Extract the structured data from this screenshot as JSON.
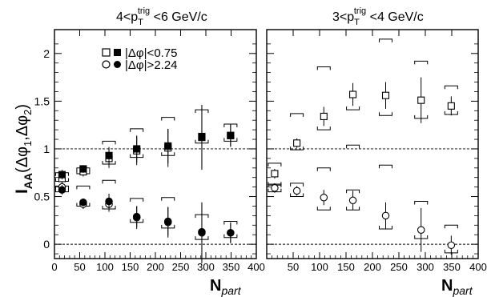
{
  "chart_data": [
    {
      "type": "scatter",
      "panel": "left",
      "title_main": "4<p",
      "title_sub": "T",
      "title_sup": "trig",
      "title_rest": " <6 GeV/c",
      "xlim": [
        0,
        400
      ],
      "ylim": [
        -0.15,
        2.25
      ],
      "xticks": [
        0,
        50,
        100,
        150,
        200,
        250,
        300,
        350,
        400
      ],
      "yticks": [
        0,
        0.5,
        1,
        1.5,
        2
      ],
      "reference_lines": [
        0,
        1
      ],
      "legend": [
        {
          "label_pre": "|",
          "label_mid": "Δφ",
          "label_post": "|<0.75",
          "symbols": [
            "open-square",
            "filled-square"
          ]
        },
        {
          "label_pre": "|",
          "label_mid": "Δφ",
          "label_post": "|>2.24",
          "symbols": [
            "open-circle",
            "filled-circle"
          ]
        }
      ],
      "series": [
        {
          "symbol": "open-square",
          "x": [
            15,
            57,
            108,
            163,
            225,
            292,
            349
          ],
          "y": [
            0.69,
            0.76,
            0.9,
            0.98,
            1.01,
            1.12,
            1.14
          ],
          "err": [
            0.07,
            0.05,
            0.1,
            0.15,
            0.2,
            0.34,
            0.12
          ],
          "sys_hi": [
            0.75,
            0.8,
            1.08,
            1.21,
            1.33,
            1.41,
            1.26
          ],
          "sys_lo": [
            0.66,
            0.74,
            0.84,
            0.91,
            0.93,
            1.06,
            1.08
          ]
        },
        {
          "symbol": "filled-square",
          "x": [
            15,
            57,
            108,
            163,
            225,
            292,
            349
          ],
          "y": [
            0.73,
            0.79,
            0.93,
            1.0,
            1.03,
            1.13,
            1.14
          ],
          "err": [
            0.05,
            0.04,
            0.09,
            0.14,
            0.18,
            0.33,
            0.11
          ]
        },
        {
          "symbol": "open-circle",
          "x": [
            15,
            57,
            108,
            163,
            225,
            292,
            349
          ],
          "y": [
            0.6,
            0.42,
            0.42,
            0.28,
            0.23,
            0.12,
            0.12
          ],
          "err": [
            0.06,
            0.05,
            0.08,
            0.12,
            0.16,
            0.32,
            0.11
          ],
          "sys_hi": [
            0.61,
            0.61,
            0.67,
            0.48,
            0.49,
            0.31,
            0.24
          ],
          "sys_lo": [
            0.55,
            0.4,
            0.37,
            0.23,
            0.17,
            0.05,
            0.07
          ]
        },
        {
          "symbol": "filled-circle",
          "x": [
            15,
            57,
            108,
            163,
            225,
            292,
            349
          ],
          "y": [
            0.57,
            0.44,
            0.45,
            0.29,
            0.24,
            0.13,
            0.12
          ],
          "err": [
            0.05,
            0.04,
            0.08,
            0.11,
            0.15,
            0.3,
            0.1
          ]
        }
      ]
    },
    {
      "type": "scatter",
      "panel": "right",
      "title_main": "3<p",
      "title_sub": "T",
      "title_sup": "trig",
      "title_rest": " <4 GeV/c",
      "xlim": [
        0,
        400
      ],
      "ylim": [
        -0.15,
        2.25
      ],
      "xticks": [
        50,
        100,
        150,
        200,
        250,
        300,
        350,
        400
      ],
      "yticks": [
        0,
        0.5,
        1,
        1.5,
        2
      ],
      "reference_lines": [
        0,
        1
      ],
      "series": [
        {
          "symbol": "open-square",
          "x": [
            15,
            57,
            108,
            163,
            225,
            292,
            349
          ],
          "y": [
            0.74,
            1.06,
            1.34,
            1.57,
            1.56,
            1.51,
            1.45
          ],
          "err": [
            0.05,
            0.05,
            0.1,
            0.12,
            0.14,
            0.24,
            0.1
          ],
          "sys_hi": [
            0.85,
            1.37,
            1.86,
            1.04,
            2.15,
            1.92,
            1.66
          ],
          "sys_lo": [
            0.62,
            0.99,
            1.2,
            1.41,
            1.35,
            1.32,
            1.36
          ]
        },
        {
          "symbol": "open-circle",
          "x": [
            15,
            57,
            108,
            163,
            225,
            292,
            349
          ],
          "y": [
            0.59,
            0.56,
            0.49,
            0.46,
            0.3,
            0.15,
            -0.01
          ],
          "err": [
            0.05,
            0.05,
            0.08,
            0.1,
            0.14,
            0.23,
            0.1
          ],
          "sys_hi": [
            0.63,
            0.64,
            0.8,
            0.57,
            0.83,
            0.45,
            0.2
          ],
          "sys_lo": [
            0.55,
            0.5,
            0.36,
            0.36,
            0.16,
            0.06,
            -0.09
          ]
        }
      ]
    }
  ],
  "axes": {
    "ylabel_main": "I",
    "ylabel_sub": "AA",
    "ylabel_rest": "(Δφ",
    "ylabel_s1": "1",
    "ylabel_comma": ",Δφ",
    "ylabel_s2": "2",
    "ylabel_close": ")",
    "xlabel_main": "N",
    "xlabel_sub": "part"
  }
}
